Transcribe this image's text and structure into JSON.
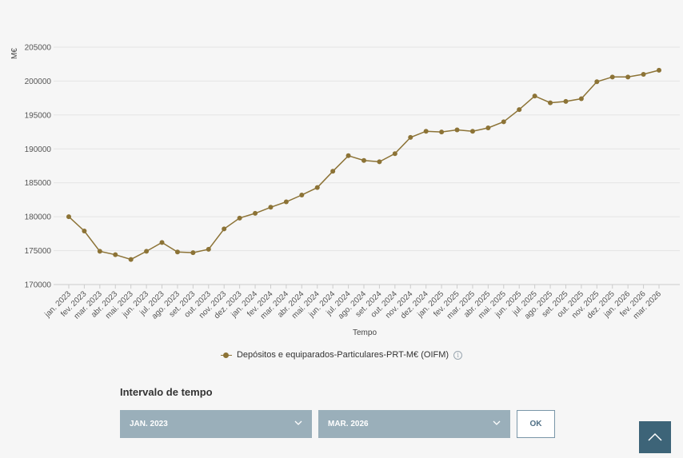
{
  "chart_data": {
    "type": "line",
    "ylabel": "M€",
    "xlabel": "Tempo",
    "ylim": [
      170000,
      205000
    ],
    "yticks": [
      170000,
      175000,
      180000,
      185000,
      190000,
      195000,
      200000,
      205000
    ],
    "grid": true,
    "legend_position": "bottom",
    "categories": [
      "jan. 2023",
      "fev. 2023",
      "mar. 2023",
      "abr. 2023",
      "mai. 2023",
      "jun. 2023",
      "jul. 2023",
      "ago. 2023",
      "set. 2023",
      "out. 2023",
      "nov. 2023",
      "dez. 2023",
      "jan. 2024",
      "fev. 2024",
      "mar. 2024",
      "abr. 2024",
      "mai. 2024",
      "jun. 2024",
      "jul. 2024",
      "ago. 2024",
      "set. 2024",
      "out. 2024",
      "nov. 2024",
      "dez. 2024",
      "jan. 2025",
      "fev. 2025",
      "mar. 2025",
      "abr. 2025",
      "mai. 2025",
      "jun. 2025",
      "jul. 2025",
      "ago. 2025",
      "set. 2025",
      "out. 2025",
      "nov. 2025",
      "dez. 2025",
      "jan. 2026",
      "fev. 2026",
      "mar. 2026"
    ],
    "series": [
      {
        "name": "Depósitos e equiparados-Particulares-PRT-M€ (OIFM)",
        "color": "#8c7336",
        "values": [
          180000,
          177900,
          174900,
          174400,
          173700,
          174900,
          176200,
          174800,
          174700,
          175200,
          178200,
          179800,
          180500,
          181400,
          182200,
          183200,
          184300,
          186700,
          189000,
          188300,
          188100,
          189300,
          191700,
          192600,
          192500,
          192800,
          192600,
          193100,
          194000,
          195800,
          197800,
          196800,
          197000,
          197400,
          199900,
          200600,
          200600,
          201000,
          201600
        ]
      }
    ]
  },
  "legend": {
    "label": "Depósitos e equiparados-Particulares-PRT-M€ (OIFM)",
    "info_icon": "info-icon",
    "info_glyph": "i"
  },
  "range": {
    "title": "Intervalo de tempo",
    "start": "JAN. 2023",
    "end": "MAR. 2026",
    "ok_label": "OK"
  },
  "icons": {
    "dropdown": "chevron-down-icon",
    "scroll_top": "chevron-up-icon"
  },
  "colors": {
    "series": "#8c7336",
    "select_bg": "#9aafba",
    "scroll_top_bg": "#3d6478",
    "grid": "#e4e4e4"
  }
}
